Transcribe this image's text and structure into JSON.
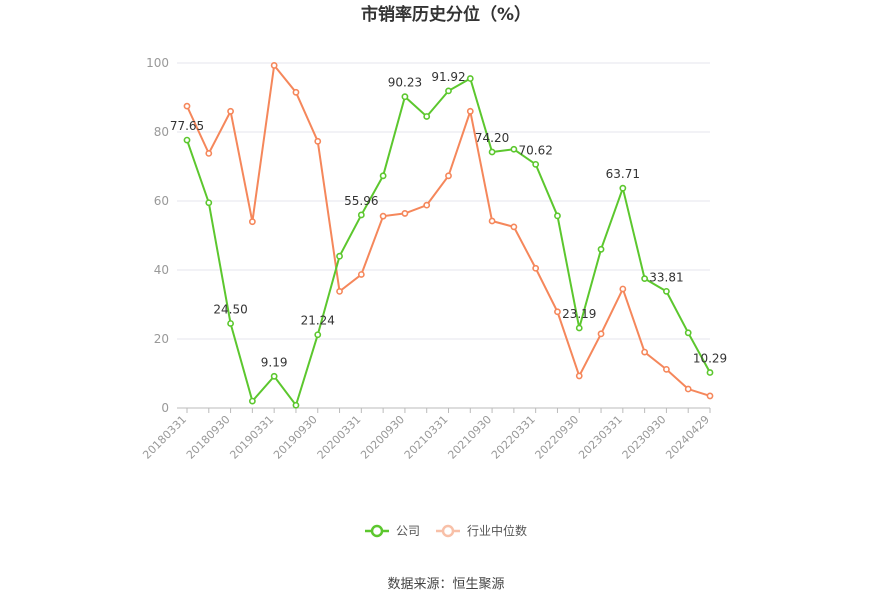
{
  "chart_data": {
    "type": "line",
    "title": "市销率历史分位（%）",
    "ylim": [
      0,
      100
    ],
    "yticks": [
      0,
      20,
      40,
      60,
      80,
      100
    ],
    "x": [
      "20180331",
      "20180630",
      "20180930",
      "20181231",
      "20190331",
      "20190630",
      "20190930",
      "20191231",
      "20200331",
      "20200630",
      "20200930",
      "20201231",
      "20210331",
      "20210630",
      "20210930",
      "20211231",
      "20220331",
      "20220630",
      "20220930",
      "20221231",
      "20230331",
      "20230630",
      "20230930",
      "20231231",
      "20240429"
    ],
    "x_tick_labels": [
      "20180331",
      "20180930",
      "20190331",
      "20190930",
      "20200331",
      "20200930",
      "20210331",
      "20210930",
      "20220331",
      "20220930",
      "20230331",
      "20230930",
      "20240429"
    ],
    "grid": true,
    "legend_position": "bottom",
    "series": [
      {
        "name": "公司",
        "color": "#5cc72e",
        "values": [
          77.65,
          59.5,
          24.5,
          2.0,
          9.19,
          0.8,
          21.24,
          44.0,
          55.96,
          67.3,
          90.23,
          84.5,
          91.92,
          95.5,
          74.2,
          75.0,
          70.62,
          55.7,
          23.19,
          46.0,
          63.71,
          37.5,
          33.81,
          21.8,
          10.29
        ],
        "labels": {
          "0": "77.65",
          "2": "24.50",
          "4": "9.19",
          "6": "21.24",
          "8": "55.96",
          "10": "90.23",
          "12": "91.92",
          "14": "74.20",
          "16": "70.62",
          "18": "23.19",
          "20": "63.71",
          "22": "33.81",
          "24": "10.29"
        }
      },
      {
        "name": "行业中位数",
        "color": "#f5875b",
        "values": [
          87.5,
          73.8,
          86.0,
          54.0,
          99.3,
          91.5,
          77.3,
          33.8,
          38.7,
          55.6,
          56.4,
          58.8,
          67.3,
          86.0,
          54.2,
          52.5,
          40.5,
          27.9,
          9.3,
          21.5,
          34.5,
          16.2,
          11.2,
          5.5,
          3.5
        ]
      }
    ],
    "source": "数据来源：恒生聚源"
  }
}
